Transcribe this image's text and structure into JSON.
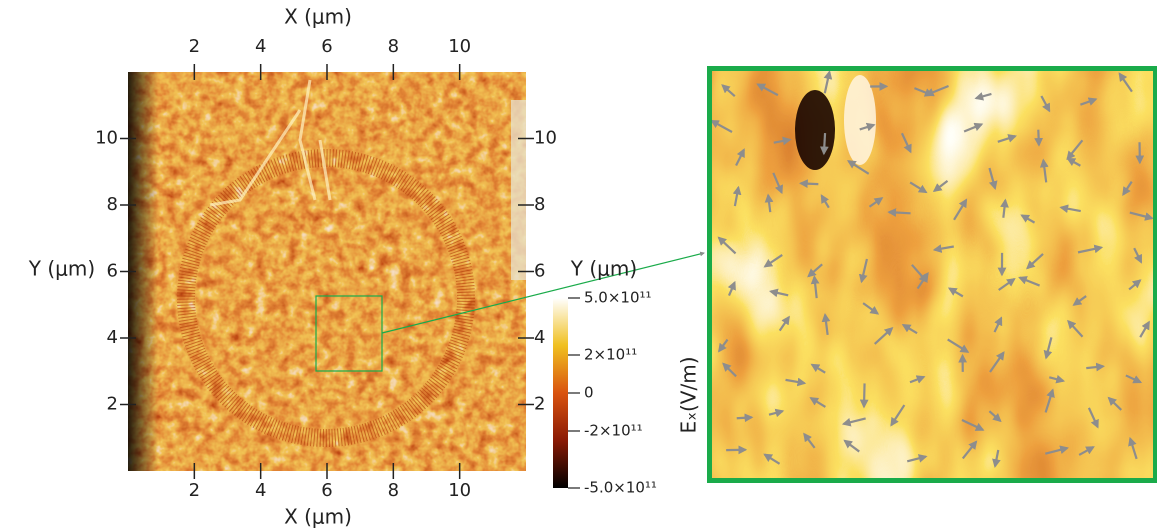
{
  "chart_data": {
    "type": "heatmap",
    "xlabel": "X (μm)",
    "ylabel": "Y (μm)",
    "xlim": [
      0,
      12
    ],
    "ylim": [
      0,
      12
    ],
    "xticks": [
      2,
      4,
      6,
      8,
      10
    ],
    "yticks": [
      2,
      4,
      6,
      8,
      10
    ],
    "colorbar": {
      "label": "Eₓ(V/m)",
      "lim": [
        -500000000000,
        500000000000
      ],
      "ticks": [
        {
          "value": 500000000000,
          "label": "5.0×10¹¹"
        },
        {
          "value": 200000000000,
          "label": "2×10¹¹"
        },
        0,
        {
          "value": -200000000000,
          "label": "-2×10¹¹"
        },
        {
          "value": -500000000000,
          "label": "-5.0×10¹¹"
        }
      ],
      "colors": [
        "#000000",
        "#8a1a05",
        "#d9530f",
        "#f0c020",
        "#ffffff"
      ]
    },
    "inset_color": "#1aab4a"
  }
}
